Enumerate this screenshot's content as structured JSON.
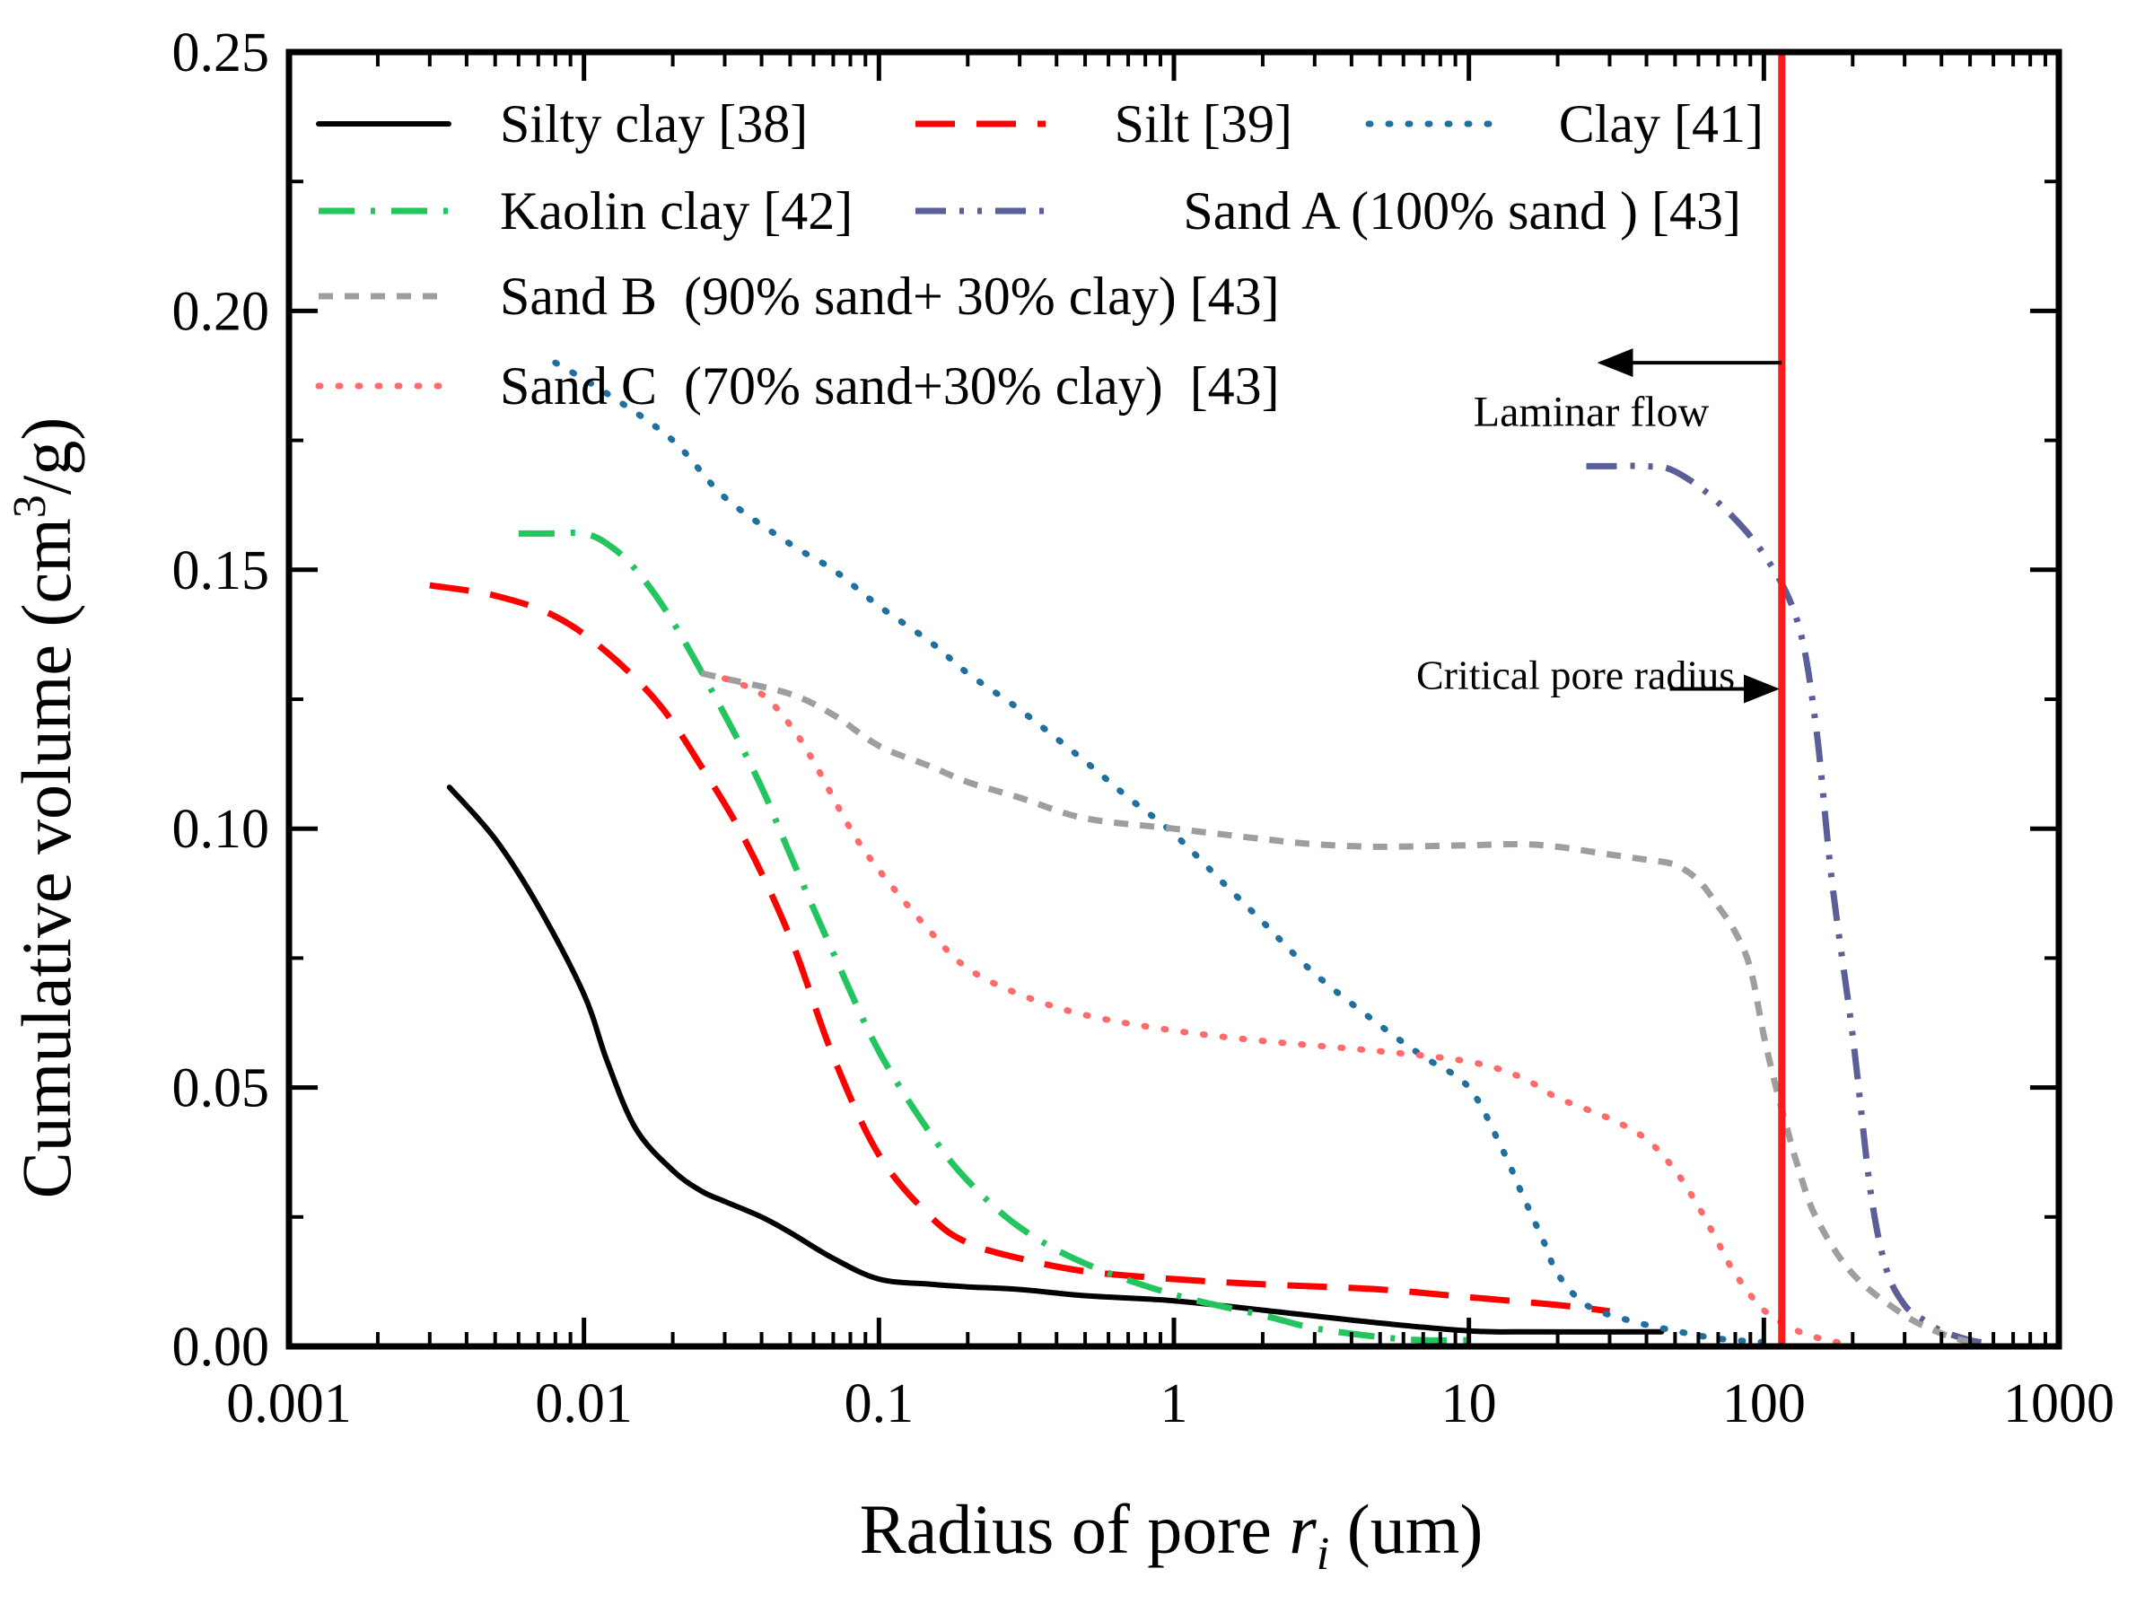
{
  "chart_data": {
    "type": "line",
    "title": "",
    "xlabel": "Radius of pore r_i (um)",
    "xlabel_parts": {
      "prefix": "Radius of pore ",
      "var": "r",
      "sub": "i",
      "suffix": " (um)"
    },
    "ylabel": "Cumulative volume (cm3/g)",
    "ylabel_parts": {
      "prefix": "Cumulative volume (cm",
      "sup": "3",
      "suffix": "/g)"
    },
    "xscale": "log",
    "xlim": [
      0.001,
      1000
    ],
    "ylim": [
      0.0,
      0.25
    ],
    "x_ticks": [
      {
        "value": 0.001,
        "label": "0.001"
      },
      {
        "value": 0.01,
        "label": "0.01"
      },
      {
        "value": 0.1,
        "label": "0.1"
      },
      {
        "value": 1,
        "label": "1"
      },
      {
        "value": 10,
        "label": "10"
      },
      {
        "value": 100,
        "label": "100"
      },
      {
        "value": 1000,
        "label": "1000"
      }
    ],
    "y_ticks": [
      {
        "value": 0.0,
        "label": "0.00"
      },
      {
        "value": 0.05,
        "label": "0.05"
      },
      {
        "value": 0.1,
        "label": "0.10"
      },
      {
        "value": 0.15,
        "label": "0.15"
      },
      {
        "value": 0.2,
        "label": "0.20"
      },
      {
        "value": 0.25,
        "label": "0.25"
      }
    ],
    "grid": false,
    "legend_position": "top-left",
    "series": [
      {
        "name": "Silty clay [38]",
        "color": "#000000",
        "style": "solid",
        "x": [
          0.0035,
          0.005,
          0.007,
          0.01,
          0.012,
          0.015,
          0.02,
          0.025,
          0.03,
          0.04,
          0.05,
          0.07,
          0.1,
          0.15,
          0.2,
          0.3,
          0.5,
          1,
          2,
          5,
          10,
          15,
          45
        ],
        "y": [
          0.108,
          0.098,
          0.085,
          0.068,
          0.055,
          0.042,
          0.034,
          0.03,
          0.028,
          0.025,
          0.022,
          0.017,
          0.013,
          0.012,
          0.0115,
          0.011,
          0.0098,
          0.0088,
          0.007,
          0.0045,
          0.003,
          0.0028,
          0.0028
        ]
      },
      {
        "name": "Silt [39]",
        "color": "#ff0000",
        "style": "dash",
        "x": [
          0.003,
          0.005,
          0.008,
          0.012,
          0.018,
          0.025,
          0.035,
          0.05,
          0.07,
          0.1,
          0.15,
          0.2,
          0.3,
          0.5,
          1,
          2,
          5,
          10,
          20,
          30
        ],
        "y": [
          0.147,
          0.145,
          0.141,
          0.134,
          0.124,
          0.112,
          0.098,
          0.079,
          0.056,
          0.037,
          0.025,
          0.02,
          0.017,
          0.0145,
          0.013,
          0.012,
          0.011,
          0.0095,
          0.008,
          0.0068
        ]
      },
      {
        "name": "Clay [41]",
        "color": "#1f6f9f",
        "style": "dot",
        "x": [
          0.008,
          0.012,
          0.02,
          0.03,
          0.05,
          0.07,
          0.1,
          0.15,
          0.2,
          0.3,
          0.5,
          0.7,
          1,
          1.5,
          2,
          3,
          5,
          7,
          10,
          13,
          15,
          18,
          20,
          25,
          35,
          50,
          70,
          100
        ],
        "y": [
          0.19,
          0.184,
          0.175,
          0.164,
          0.155,
          0.15,
          0.143,
          0.136,
          0.13,
          0.123,
          0.113,
          0.106,
          0.099,
          0.089,
          0.082,
          0.072,
          0.062,
          0.056,
          0.05,
          0.038,
          0.03,
          0.02,
          0.014,
          0.008,
          0.005,
          0.003,
          0.0015,
          0.0008
        ]
      },
      {
        "name": "Kaolin clay [42]",
        "color": "#22c55e",
        "style": "dashdot",
        "x": [
          0.006,
          0.008,
          0.01,
          0.012,
          0.015,
          0.02,
          0.03,
          0.04,
          0.05,
          0.07,
          0.1,
          0.15,
          0.2,
          0.3,
          0.5,
          1,
          2,
          3,
          5,
          7,
          10
        ],
        "y": [
          0.157,
          0.157,
          0.157,
          0.155,
          0.15,
          0.14,
          0.122,
          0.108,
          0.095,
          0.076,
          0.057,
          0.041,
          0.032,
          0.023,
          0.016,
          0.01,
          0.006,
          0.0035,
          0.0018,
          0.0012,
          0.0012
        ]
      },
      {
        "name": "Sand A (100% sand ) [43]",
        "color": "#5b5f97",
        "style": "dashdotdot",
        "x": [
          25,
          30,
          40,
          50,
          70,
          100,
          130,
          150,
          170,
          200,
          230,
          260,
          300,
          350,
          400,
          500,
          600
        ],
        "y": [
          0.17,
          0.17,
          0.17,
          0.169,
          0.163,
          0.153,
          0.14,
          0.12,
          0.09,
          0.06,
          0.03,
          0.015,
          0.008,
          0.005,
          0.003,
          0.0012,
          0.0005
        ]
      },
      {
        "name": "Sand B  (90% sand+ 30% clay) [43]",
        "color": "#9e9e9e",
        "style": "shortdash",
        "x": [
          0.025,
          0.03,
          0.05,
          0.07,
          0.1,
          0.15,
          0.2,
          0.3,
          0.5,
          1,
          2,
          3,
          5,
          10,
          15,
          20,
          30,
          40,
          50,
          60,
          70,
          80,
          90,
          100,
          110,
          120,
          130,
          150,
          200,
          300,
          400,
          500
        ],
        "y": [
          0.13,
          0.129,
          0.126,
          0.122,
          0.116,
          0.112,
          0.109,
          0.106,
          0.102,
          0.1,
          0.098,
          0.097,
          0.0965,
          0.0968,
          0.097,
          0.0965,
          0.095,
          0.094,
          0.093,
          0.09,
          0.085,
          0.08,
          0.073,
          0.06,
          0.05,
          0.042,
          0.035,
          0.025,
          0.014,
          0.006,
          0.0025,
          0.0008
        ]
      },
      {
        "name": "Sand C  (70% sand+30% clay)  [43]",
        "color": "#ff6b6b",
        "style": "dot",
        "x": [
          0.03,
          0.04,
          0.05,
          0.06,
          0.08,
          0.1,
          0.15,
          0.2,
          0.3,
          0.5,
          1,
          2,
          5,
          10,
          15,
          20,
          30,
          40,
          50,
          60,
          70,
          80,
          100,
          130,
          170,
          200
        ],
        "y": [
          0.129,
          0.126,
          0.12,
          0.113,
          0.1,
          0.092,
          0.08,
          0.073,
          0.068,
          0.064,
          0.061,
          0.059,
          0.057,
          0.055,
          0.052,
          0.048,
          0.044,
          0.04,
          0.034,
          0.027,
          0.02,
          0.014,
          0.007,
          0.003,
          0.001,
          0.0005
        ]
      }
    ],
    "vertical_line": {
      "x": 115,
      "color": "#ff1a1a"
    },
    "annotations": [
      {
        "text": "Laminar flow",
        "x": 26,
        "y": 0.1778
      },
      {
        "text": "Critical pore radius",
        "x": 23,
        "y": 0.127
      }
    ],
    "arrows": [
      {
        "from": {
          "x": 115,
          "y": 0.19
        },
        "to": {
          "x": 28,
          "y": 0.19
        }
      },
      {
        "from": {
          "x": 48,
          "y": 0.127
        },
        "to": {
          "x": 110,
          "y": 0.127
        }
      }
    ]
  }
}
